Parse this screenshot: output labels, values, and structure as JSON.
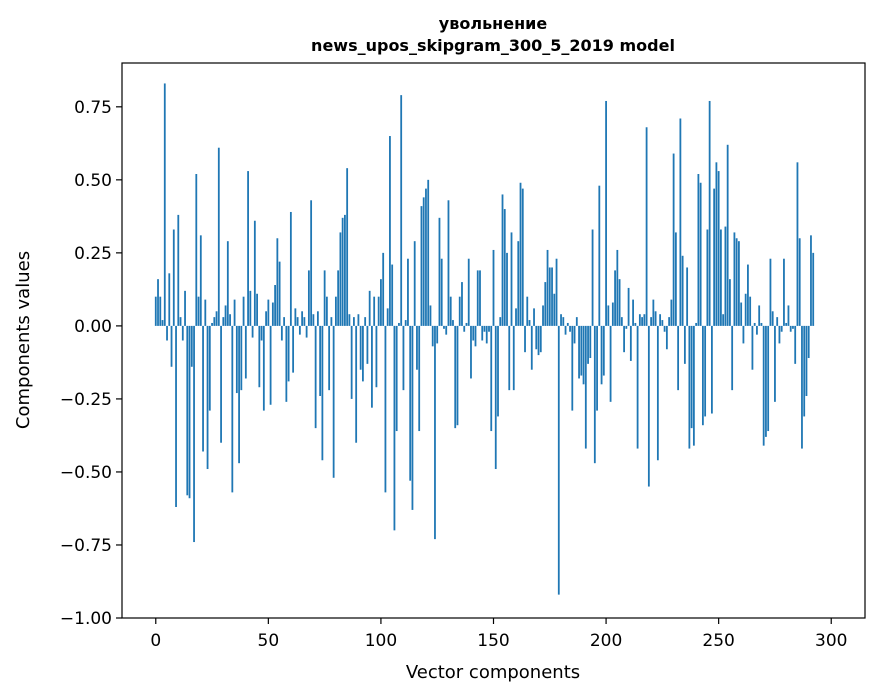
{
  "chart_data": {
    "type": "bar",
    "title": [
      "увольнение",
      "news_upos_skipgram_300_5_2019 model"
    ],
    "xlabel": "Vector components",
    "ylabel": "Components values",
    "xlim": [
      -15,
      315
    ],
    "ylim": [
      -1.0,
      0.9
    ],
    "xticks": [
      0,
      50,
      100,
      150,
      200,
      250,
      300
    ],
    "yticks": [
      -1.0,
      -0.75,
      -0.5,
      -0.25,
      0.0,
      0.25,
      0.5,
      0.75
    ],
    "ytick_labels": [
      "−1.00",
      "−0.75",
      "−0.50",
      "−0.25",
      "0.00",
      "0.25",
      "0.50",
      "0.75"
    ],
    "grid": false,
    "color": "#1f77b4",
    "values": [
      0.1,
      0.16,
      0.1,
      0.02,
      0.83,
      -0.05,
      0.18,
      -0.14,
      0.33,
      -0.62,
      0.38,
      0.03,
      -0.05,
      0.12,
      -0.58,
      -0.59,
      -0.14,
      -0.74,
      0.52,
      0.1,
      0.31,
      -0.43,
      0.09,
      -0.49,
      -0.29,
      0.01,
      0.03,
      0.05,
      0.61,
      -0.4,
      0.03,
      0.07,
      0.29,
      0.04,
      -0.57,
      0.09,
      -0.23,
      -0.47,
      -0.22,
      0.1,
      -0.18,
      0.53,
      0.12,
      -0.04,
      0.36,
      0.11,
      -0.21,
      -0.05,
      -0.29,
      0.05,
      0.09,
      -0.27,
      0.08,
      0.14,
      0.3,
      0.22,
      -0.05,
      0.03,
      -0.26,
      -0.19,
      0.39,
      -0.16,
      0.06,
      0.03,
      -0.03,
      0.05,
      0.03,
      -0.04,
      0.19,
      0.43,
      0.04,
      -0.35,
      0.05,
      -0.24,
      -0.46,
      0.19,
      0.1,
      -0.22,
      0.03,
      -0.52,
      0.1,
      0.19,
      0.32,
      0.37,
      0.38,
      0.54,
      0.04,
      -0.25,
      0.03,
      -0.4,
      0.04,
      -0.15,
      -0.19,
      0.03,
      -0.13,
      0.12,
      -0.28,
      0.1,
      -0.21,
      0.1,
      0.16,
      0.25,
      -0.57,
      0.06,
      0.65,
      0.21,
      -0.7,
      -0.36,
      0.01,
      0.79,
      -0.22,
      0.02,
      0.23,
      -0.53,
      -0.63,
      0.29,
      -0.15,
      -0.36,
      0.41,
      0.44,
      0.47,
      0.5,
      0.07,
      -0.07,
      -0.73,
      -0.06,
      0.37,
      0.23,
      -0.01,
      -0.03,
      0.43,
      0.1,
      0.02,
      -0.35,
      -0.34,
      0.1,
      0.15,
      -0.02,
      0.01,
      0.23,
      -0.18,
      -0.05,
      -0.07,
      0.19,
      0.19,
      -0.05,
      -0.02,
      -0.06,
      -0.02,
      -0.36,
      0.26,
      -0.49,
      -0.31,
      0.03,
      0.45,
      0.4,
      0.25,
      -0.22,
      0.32,
      -0.22,
      0.06,
      0.29,
      0.49,
      0.47,
      -0.09,
      0.1,
      0.02,
      -0.15,
      0.06,
      -0.08,
      -0.1,
      -0.09,
      0.07,
      0.15,
      0.26,
      0.2,
      0.2,
      0.11,
      0.23,
      -0.92,
      0.04,
      0.03,
      -0.03,
      0.01,
      -0.02,
      -0.29,
      -0.06,
      0.03,
      -0.18,
      -0.17,
      -0.2,
      -0.42,
      -0.13,
      -0.11,
      0.33,
      -0.47,
      -0.29,
      0.48,
      -0.2,
      -0.17,
      0.77,
      0.07,
      -0.26,
      0.08,
      0.19,
      0.26,
      0.16,
      0.03,
      -0.09,
      -0.01,
      0.13,
      -0.12,
      0.09,
      0.01,
      -0.42,
      0.04,
      0.03,
      0.04,
      0.68,
      -0.55,
      0.03,
      0.09,
      0.05,
      -0.46,
      0.04,
      0.02,
      -0.02,
      -0.08,
      0.03,
      0.09,
      0.59,
      0.32,
      -0.22,
      0.71,
      0.24,
      -0.13,
      0.2,
      -0.42,
      -0.35,
      -0.41,
      0.01,
      0.52,
      0.49,
      -0.34,
      -0.31,
      0.33,
      0.77,
      -0.3,
      0.47,
      0.56,
      0.53,
      0.33,
      0.04,
      0.34,
      0.62,
      0.16,
      -0.22,
      0.32,
      0.3,
      0.29,
      0.08,
      -0.06,
      0.11,
      0.21,
      0.1,
      -0.15,
      0.01,
      -0.03,
      0.07,
      0.01,
      -0.41,
      -0.38,
      -0.36,
      0.23,
      0.05,
      -0.26,
      0.03,
      -0.06,
      -0.02,
      0.23,
      0.01,
      0.07,
      -0.02,
      -0.01,
      -0.13,
      0.56,
      0.3,
      -0.42,
      -0.31,
      -0.24,
      -0.11,
      0.31,
      0.25
    ]
  }
}
